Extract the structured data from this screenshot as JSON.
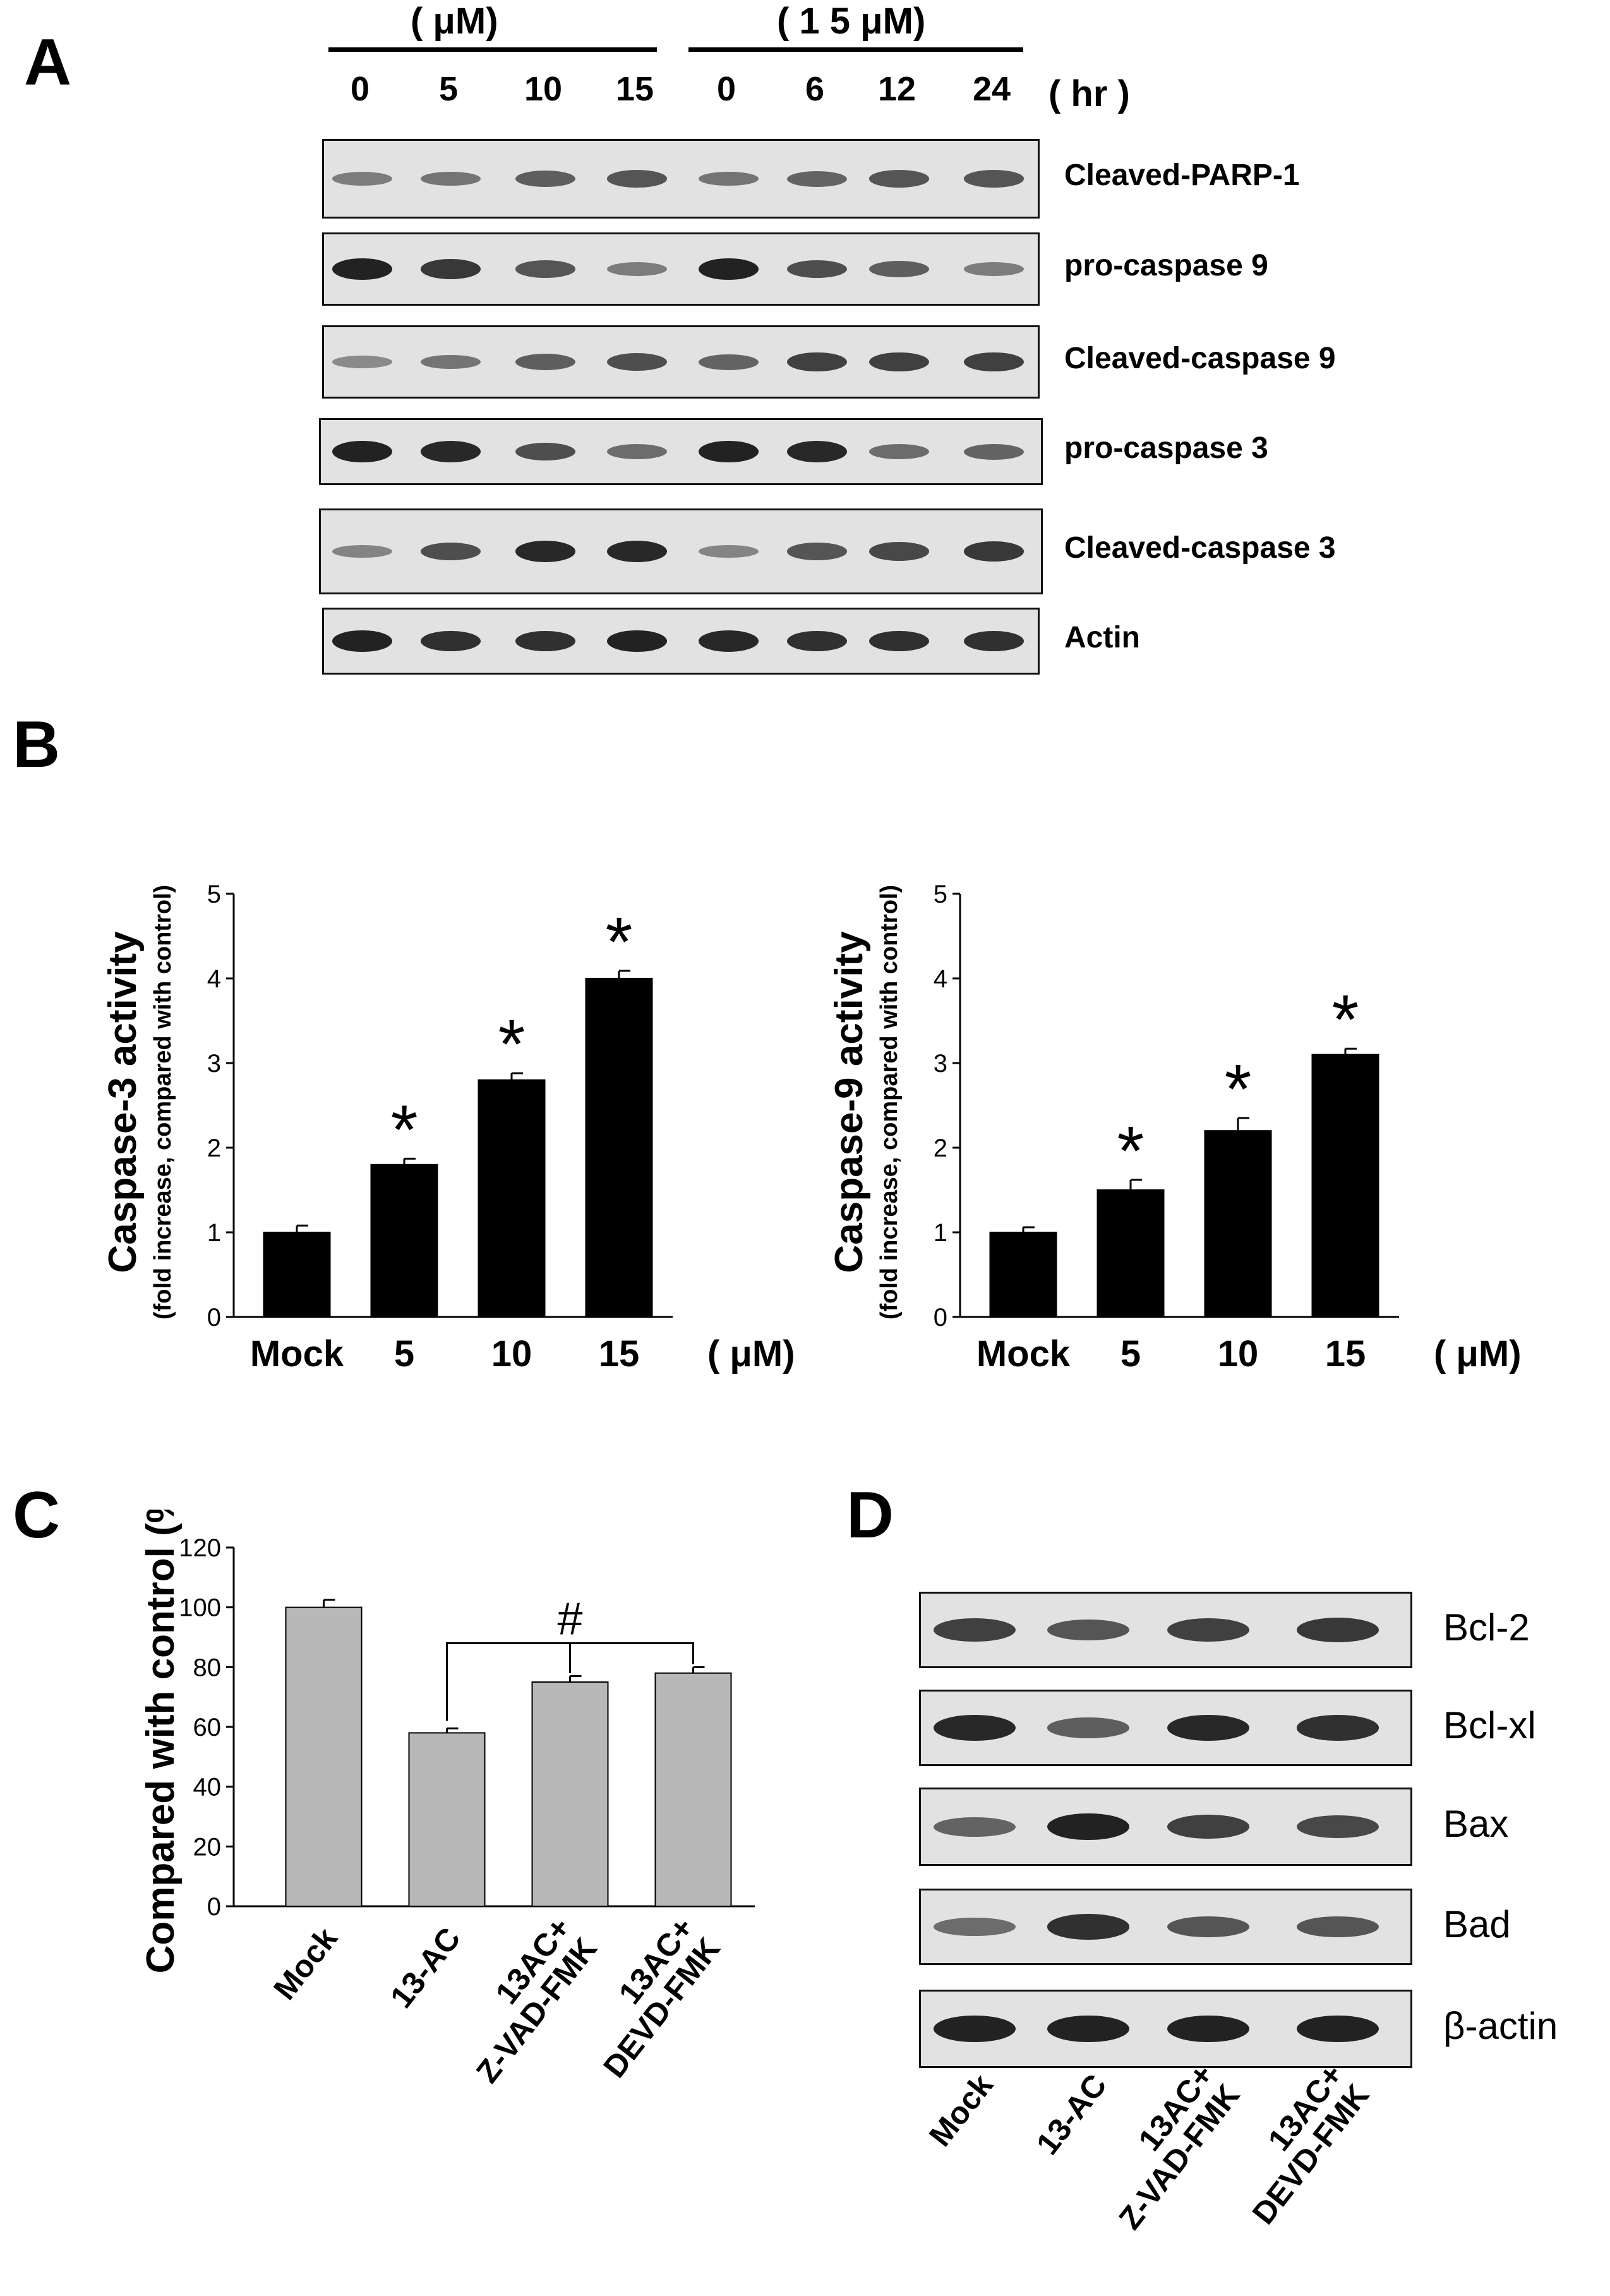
{
  "panel_a": {
    "letter": "A",
    "group_left_label": "( μM)",
    "group_right_label": "( 1 5 μM)",
    "lanes": [
      "0",
      "5",
      "10",
      "15",
      "0",
      "6",
      "12",
      "24"
    ],
    "time_unit": "( hr )",
    "blots": [
      {
        "label": "Cleaved-PARP-1",
        "band_intensity": [
          0.35,
          0.4,
          0.55,
          0.6,
          0.4,
          0.5,
          0.6,
          0.6
        ]
      },
      {
        "label": "pro-caspase 9",
        "band_intensity": [
          0.95,
          0.8,
          0.6,
          0.35,
          0.95,
          0.65,
          0.55,
          0.35
        ]
      },
      {
        "label": "Cleaved-caspase 9",
        "band_intensity": [
          0.25,
          0.4,
          0.55,
          0.65,
          0.5,
          0.75,
          0.75,
          0.75
        ]
      },
      {
        "label": "pro-caspase 3",
        "band_intensity": [
          0.95,
          0.9,
          0.65,
          0.45,
          0.95,
          0.9,
          0.45,
          0.5
        ]
      },
      {
        "label": "Cleaved-caspase 3",
        "band_intensity": [
          0.3,
          0.65,
          0.9,
          0.9,
          0.3,
          0.6,
          0.7,
          0.8
        ]
      },
      {
        "label": "Actin",
        "band_intensity": [
          0.95,
          0.85,
          0.85,
          0.95,
          0.9,
          0.85,
          0.85,
          0.85
        ]
      }
    ]
  },
  "panel_b": {
    "letter": "B",
    "unit_label": "( μM)"
  },
  "panel_c": {
    "letter": "C",
    "significance_mark": "#"
  },
  "panel_d": {
    "letter": "D",
    "lanes": [
      "Mock",
      "13-AC",
      "13AC+\nZ-VAD-FMK",
      "13AC+\nDEVD-FMK"
    ],
    "blots": [
      {
        "label": "Bcl-2",
        "band_intensity": [
          0.75,
          0.6,
          0.75,
          0.8
        ]
      },
      {
        "label": "Bcl-xl",
        "band_intensity": [
          0.9,
          0.55,
          0.9,
          0.85
        ]
      },
      {
        "label": "Bax",
        "band_intensity": [
          0.5,
          0.95,
          0.75,
          0.7
        ]
      },
      {
        "label": "Bad",
        "band_intensity": [
          0.45,
          0.85,
          0.6,
          0.6
        ]
      },
      {
        "label": "β-actin",
        "band_intensity": [
          0.95,
          0.95,
          0.95,
          0.95
        ]
      }
    ]
  },
  "chart_data": [
    {
      "type": "bar",
      "ylabel": "Caspase-3 activity",
      "ylabel_sub": "(fold increase, compared with control)",
      "categories": [
        "Mock",
        "5",
        "10",
        "15"
      ],
      "values": [
        1.0,
        1.8,
        2.8,
        4.0
      ],
      "errors": [
        0.08,
        0.07,
        0.08,
        0.09
      ],
      "significance": [
        "",
        "*",
        "*",
        "*"
      ],
      "ylim": [
        0,
        5
      ],
      "yticks": [
        "0",
        "1",
        "2",
        "3",
        "4",
        "5"
      ],
      "unit": "( μM)",
      "bar_color": "#000000"
    },
    {
      "type": "bar",
      "ylabel": "Caspase-9 activity",
      "ylabel_sub": "(fold increase, compared with control)",
      "categories": [
        "Mock",
        "5",
        "10",
        "15"
      ],
      "values": [
        1.0,
        1.5,
        2.2,
        3.1
      ],
      "errors": [
        0.06,
        0.12,
        0.15,
        0.07
      ],
      "significance": [
        "",
        "*",
        "*",
        "*"
      ],
      "ylim": [
        0,
        5
      ],
      "yticks": [
        "0",
        "1",
        "2",
        "3",
        "4",
        "5"
      ],
      "unit": "( μM)",
      "bar_color": "#000000"
    },
    {
      "type": "bar",
      "ylabel": "Compared with control (%)",
      "categories": [
        "Mock",
        "13-AC",
        "13AC+\nZ-VAD-FMK",
        "13AC+\nDEVD-FMK"
      ],
      "values": [
        100,
        58,
        75,
        78
      ],
      "errors": [
        2.5,
        1.5,
        2.0,
        2.0
      ],
      "ylim": [
        0,
        120
      ],
      "yticks": [
        "0",
        "20",
        "40",
        "60",
        "80",
        "100",
        "120"
      ],
      "bar_color": "#b8b8b8"
    }
  ]
}
